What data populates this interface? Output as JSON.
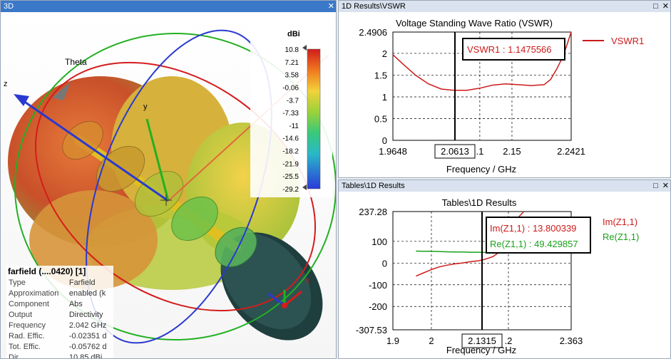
{
  "pane3d": {
    "title": "3D",
    "axis_theta": "Theta",
    "axis_z": "z",
    "axis_y": "y",
    "axis_x": "x",
    "scale": {
      "unit": "dBi",
      "ticks": [
        "10.8",
        "7.21",
        "3.58",
        "-0.06",
        "-3.7",
        "-7.33",
        "-11",
        "-14.6",
        "-18.2",
        "-21.9",
        "-25.5",
        "-29.2"
      ]
    },
    "info": {
      "header": "farfield (....0420) [1]",
      "rows": [
        {
          "label": "Type",
          "value": "Farfield"
        },
        {
          "label": "Approximation",
          "value": "enabled (k"
        },
        {
          "label": "Component",
          "value": "Abs"
        },
        {
          "label": "Output",
          "value": "Directivity"
        },
        {
          "label": "Frequency",
          "value": "2.042 GHz"
        },
        {
          "label": "Rad. Effic.",
          "value": "-0.02351 d"
        },
        {
          "label": "Tot. Effic.",
          "value": "-0.05762 d"
        },
        {
          "label": "Dir.",
          "value": "10.85 dBi"
        }
      ]
    }
  },
  "paneVswr": {
    "title": "1D Results\\VSWR",
    "marker_label": "VSWR1 : 1.1475566",
    "chart_data": {
      "type": "line",
      "title": "Voltage Standing Wave Ratio (VSWR)",
      "xlabel": "Frequency / GHz",
      "ylabel": "",
      "xlim": [
        1.9648,
        2.2421
      ],
      "ylim": [
        0,
        2.4906
      ],
      "y_ticks": [
        "2.4906",
        "2",
        "1.5",
        "1",
        "0.5",
        "0"
      ],
      "x_ticks": [
        "1.9648",
        "2.0613",
        ".1",
        "2.15",
        "2.2421"
      ],
      "marker_x": 2.0613,
      "marker_x_label": "2.0613",
      "legend_position": "right",
      "series": [
        {
          "name": "VSWR1",
          "color": "#cc1a1a",
          "x": [
            1.9648,
            1.98,
            2.0,
            2.02,
            2.04,
            2.06,
            2.08,
            2.1,
            2.12,
            2.14,
            2.16,
            2.18,
            2.2,
            2.21,
            2.22,
            2.23,
            2.2421
          ],
          "y": [
            1.97,
            1.76,
            1.5,
            1.3,
            1.18,
            1.15,
            1.15,
            1.2,
            1.27,
            1.3,
            1.28,
            1.26,
            1.28,
            1.4,
            1.65,
            1.95,
            2.4906
          ]
        }
      ]
    }
  },
  "paneTable": {
    "title": "Tables\\1D Results",
    "marker_label_im": "Im(Z1,1) : 13.800339",
    "marker_label_re": "Re(Z1,1) : 49.429857",
    "chart_data": {
      "type": "line",
      "title": "Tables\\1D Results",
      "xlabel": "Frequency / GHz",
      "ylabel": "",
      "xlim": [
        1.9,
        2.363
      ],
      "ylim": [
        -307.53,
        237.28
      ],
      "y_ticks": [
        "237.28",
        "100",
        "0",
        "-100",
        "-200",
        "-307.53"
      ],
      "y_tick_values": [
        237.28,
        100,
        0,
        -100,
        -200,
        -307.53
      ],
      "x_ticks": [
        "1.9",
        "2",
        "2.1315",
        ".2",
        "2.363"
      ],
      "marker_x": 2.1315,
      "marker_x_label": "2.1315",
      "legend_position": "right",
      "series": [
        {
          "name": "Im(Z1,1)",
          "color": "#cc1a1a",
          "x": [
            1.96,
            1.98,
            2.0,
            2.02,
            2.04,
            2.06,
            2.08,
            2.1,
            2.12,
            2.1315,
            2.14,
            2.16,
            2.18,
            2.2,
            2.22,
            2.24
          ],
          "y": [
            -60,
            -45,
            -30,
            -18,
            -10,
            -4,
            0,
            6,
            10,
            13.8,
            18,
            30,
            55,
            120,
            200,
            237.28
          ]
        },
        {
          "name": "Re(Z1,1)",
          "color": "#1aa01a",
          "x": [
            1.96,
            1.98,
            2.0,
            2.02,
            2.04,
            2.06,
            2.08,
            2.1,
            2.12,
            2.1315,
            2.14,
            2.16,
            2.18,
            2.2
          ],
          "y": [
            55,
            54,
            54,
            53,
            52,
            51,
            51,
            50,
            49.8,
            49.43,
            49,
            48,
            47,
            46
          ]
        }
      ]
    }
  }
}
